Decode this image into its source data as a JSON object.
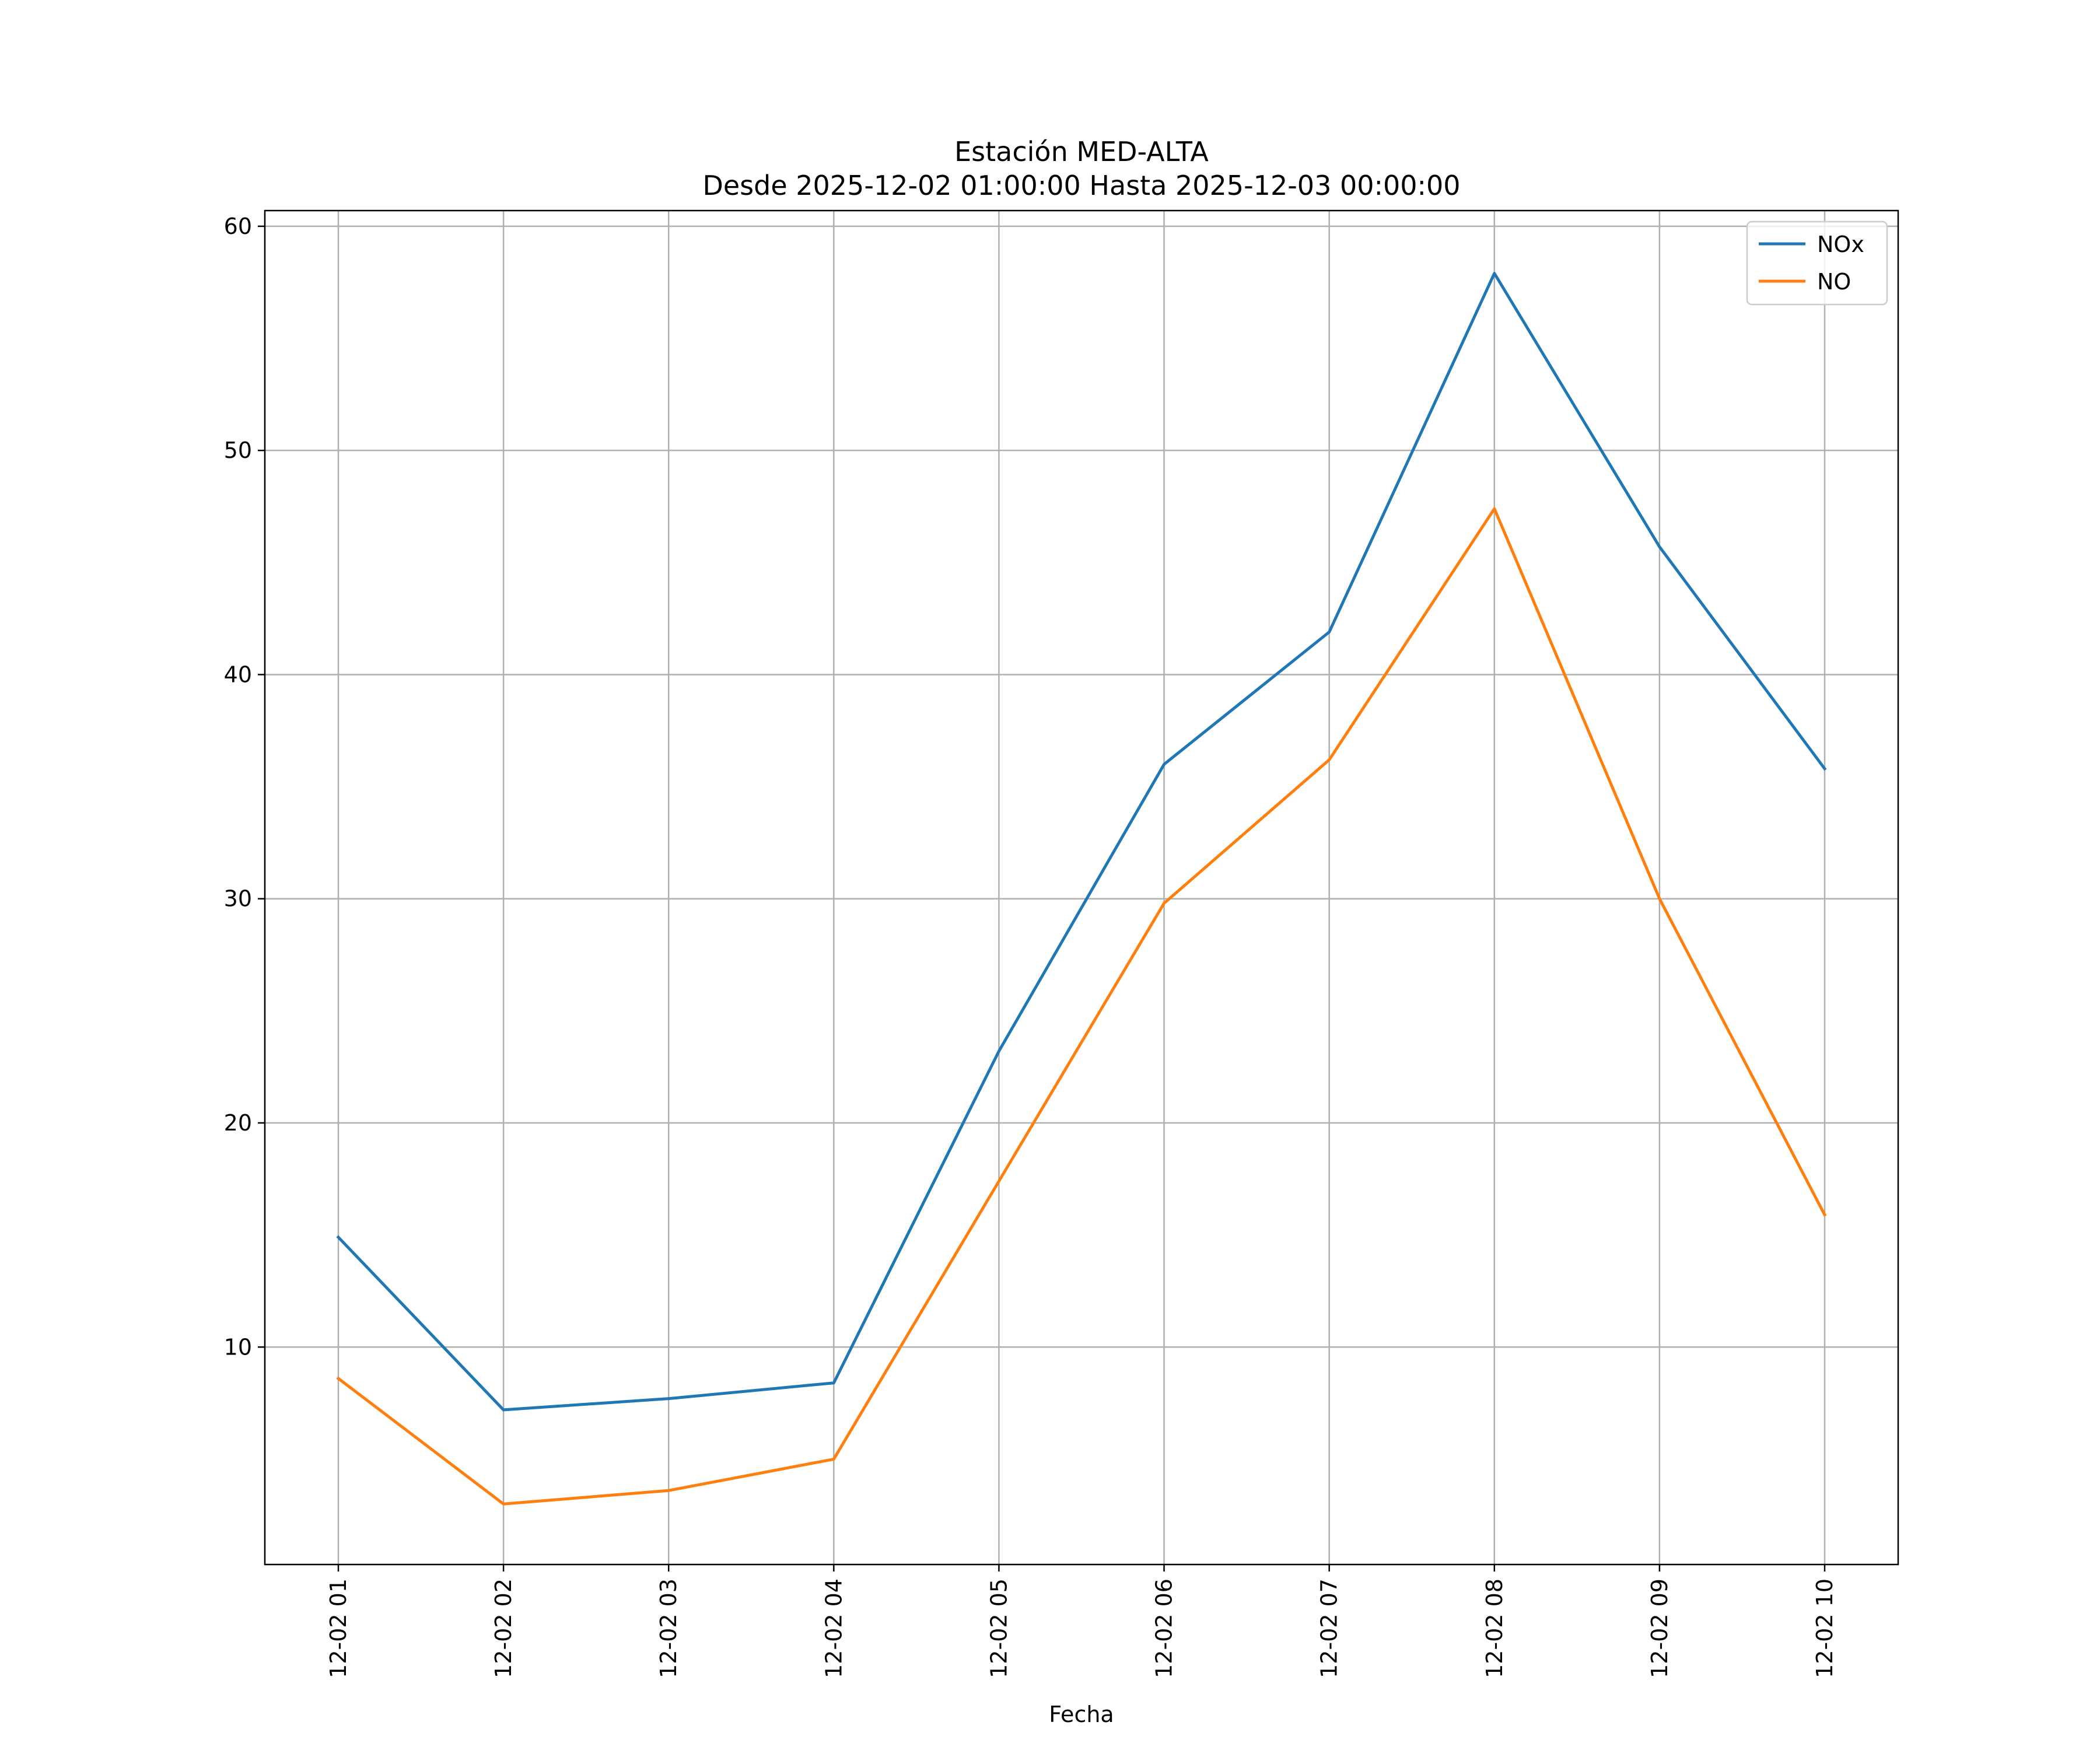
{
  "chart_data": {
    "type": "line",
    "title": "Estación MED-ALTA",
    "subtitle": "Desde 2025-12-02 01:00:00 Hasta 2025-12-03 00:00:00",
    "xlabel": "Fecha",
    "ylabel": "",
    "categories": [
      "12-02 01",
      "12-02 02",
      "12-02 03",
      "12-02 04",
      "12-02 05",
      "12-02 06",
      "12-02 07",
      "12-02 08",
      "12-02 09",
      "12-02 10"
    ],
    "ylim": [
      0.3,
      60.7
    ],
    "yticks": [
      10,
      20,
      30,
      40,
      50,
      60
    ],
    "grid": true,
    "legend_position": "top-right",
    "series": [
      {
        "name": "NOx",
        "color": "#1f77b4",
        "values": [
          14.9,
          7.2,
          7.7,
          8.4,
          23.2,
          36.0,
          41.9,
          57.9,
          45.7,
          35.8
        ]
      },
      {
        "name": "NO",
        "color": "#ff7f0e",
        "values": [
          8.6,
          3.0,
          3.6,
          5.0,
          17.4,
          29.8,
          36.2,
          47.4,
          30.0,
          15.9
        ]
      }
    ]
  }
}
